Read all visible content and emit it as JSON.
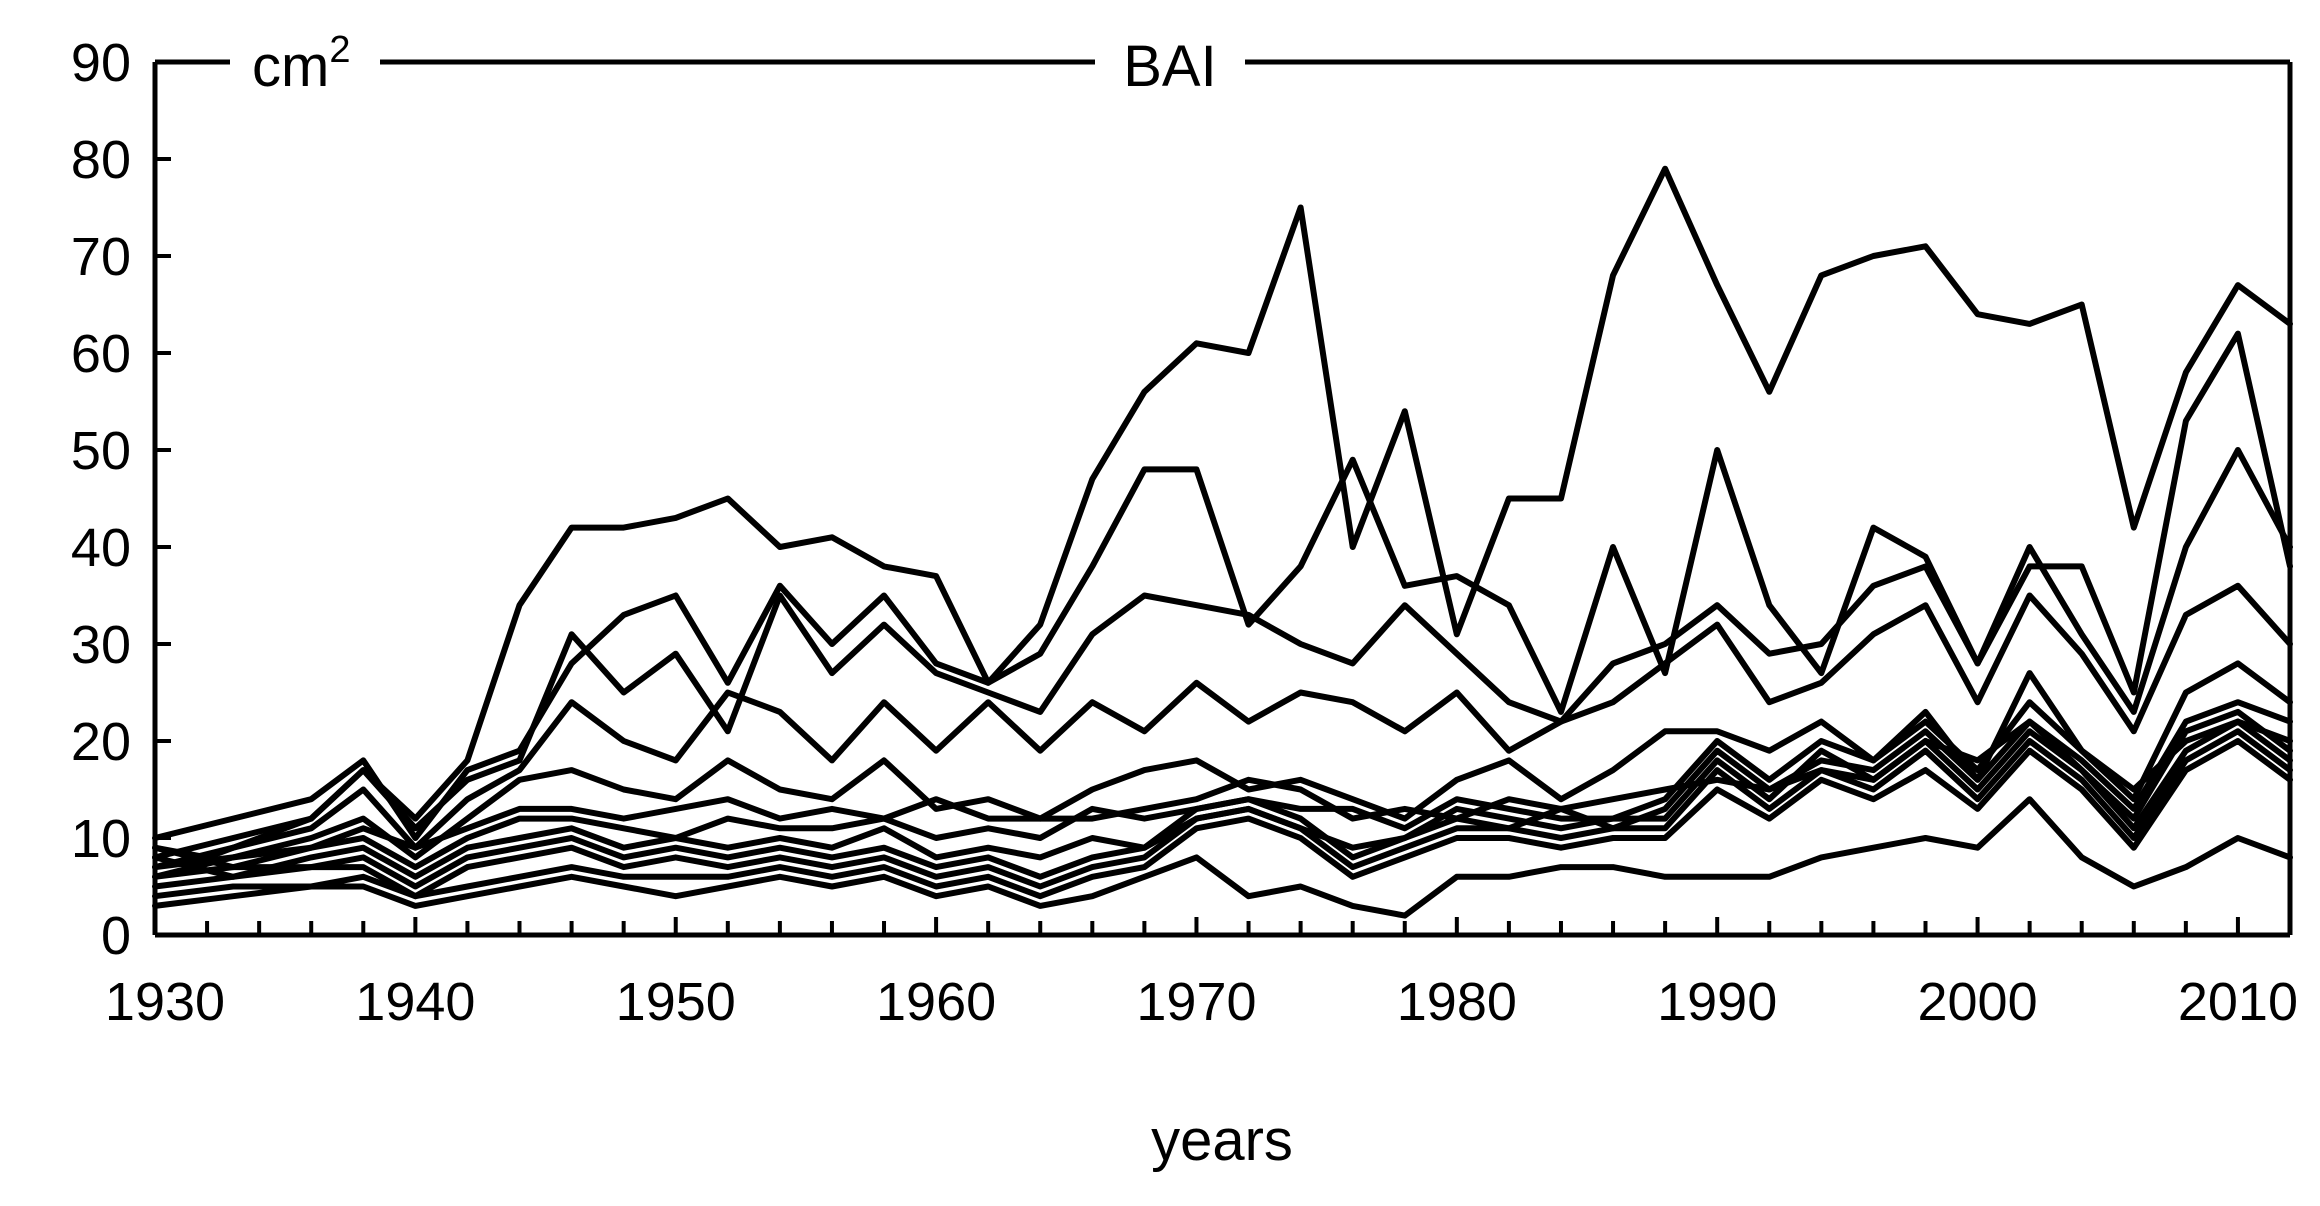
{
  "chart_data": {
    "type": "line",
    "title": "BAI",
    "unit_label": "cm",
    "unit_superscript": "2",
    "xlabel": "years",
    "ylabel": "",
    "xlim": [
      1930,
      2012
    ],
    "ylim": [
      0,
      90
    ],
    "x_ticks": [
      1930,
      1940,
      1950,
      1960,
      1970,
      1980,
      1990,
      2000,
      2010
    ],
    "y_ticks": [
      0,
      10,
      20,
      30,
      40,
      50,
      60,
      70,
      80,
      90
    ],
    "grid": false,
    "legend": "none",
    "line_color": "#000000",
    "series": [
      {
        "x": [
          1930,
          1932,
          1934,
          1936,
          1938,
          1940,
          1942,
          1944,
          1946,
          1948,
          1950,
          1952,
          1954,
          1956,
          1958,
          1960,
          1962,
          1964,
          1966,
          1968,
          1970,
          1972,
          1974,
          1976,
          1978,
          1980,
          1982,
          1984,
          1986,
          1988,
          1990,
          1992,
          1994,
          1996,
          1998,
          2000,
          2002,
          2004,
          2006,
          2008,
          2010,
          2012
        ],
        "values": [
          9,
          8,
          10,
          12,
          17,
          12,
          18,
          34,
          42,
          42,
          43,
          45,
          40,
          41,
          38,
          37,
          26,
          32,
          47,
          56,
          61,
          60,
          75,
          40,
          54,
          31,
          45,
          45,
          68,
          79,
          67,
          56,
          68,
          70,
          71,
          64,
          63,
          65,
          42,
          58,
          67,
          63
        ]
      },
      {
        "x": [
          1930,
          1933,
          1936,
          1938,
          1940,
          1942,
          1944,
          1946,
          1948,
          1950,
          1952,
          1954,
          1956,
          1958,
          1960,
          1962,
          1964,
          1966,
          1968,
          1970,
          1972,
          1974,
          1976,
          1978,
          1980,
          1982,
          1984,
          1986,
          1988,
          1990,
          1992,
          1994,
          1996,
          1998,
          2000,
          2002,
          2004,
          2006,
          2008,
          2010,
          2012
        ],
        "values": [
          10,
          12,
          14,
          18,
          10,
          17,
          19,
          28,
          33,
          35,
          26,
          36,
          30,
          35,
          28,
          26,
          29,
          38,
          48,
          48,
          32,
          38,
          49,
          36,
          37,
          34,
          23,
          40,
          27,
          50,
          34,
          27,
          42,
          39,
          28,
          38,
          38,
          25,
          53,
          62,
          38
        ]
      },
      {
        "x": [
          1930,
          1933,
          1936,
          1938,
          1940,
          1942,
          1944,
          1946,
          1948,
          1950,
          1952,
          1954,
          1956,
          1958,
          1960,
          1962,
          1964,
          1966,
          1968,
          1970,
          1972,
          1974,
          1976,
          1978,
          1980,
          1982,
          1984,
          1986,
          1988,
          1990,
          1992,
          1994,
          1996,
          1998,
          2000,
          2002,
          2004,
          2006,
          2008,
          2010,
          2012
        ],
        "values": [
          8,
          10,
          12,
          17,
          11,
          16,
          18,
          31,
          25,
          29,
          21,
          35,
          27,
          32,
          27,
          25,
          23,
          31,
          35,
          34,
          33,
          30,
          28,
          34,
          29,
          24,
          22,
          28,
          30,
          34,
          29,
          30,
          36,
          38,
          28,
          40,
          31,
          23,
          40,
          50,
          40
        ]
      },
      {
        "x": [
          1930,
          1933,
          1936,
          1938,
          1940,
          1942,
          1944,
          1946,
          1948,
          1950,
          1952,
          1954,
          1956,
          1958,
          1960,
          1962,
          1964,
          1966,
          1968,
          1970,
          1972,
          1974,
          1976,
          1978,
          1980,
          1982,
          1984,
          1986,
          1988,
          1990,
          1992,
          1994,
          1996,
          1998,
          2000,
          2002,
          2004,
          2006,
          2008,
          2010,
          2012
        ],
        "values": [
          7,
          9,
          11,
          15,
          9,
          14,
          17,
          24,
          20,
          18,
          25,
          23,
          18,
          24,
          19,
          24,
          19,
          24,
          21,
          26,
          22,
          25,
          24,
          21,
          25,
          19,
          22,
          24,
          28,
          32,
          24,
          26,
          31,
          34,
          24,
          35,
          29,
          21,
          33,
          36,
          30
        ]
      },
      {
        "x": [
          1930,
          1933,
          1936,
          1938,
          1940,
          1942,
          1944,
          1946,
          1948,
          1950,
          1952,
          1954,
          1956,
          1958,
          1960,
          1962,
          1964,
          1966,
          1968,
          1970,
          1972,
          1974,
          1976,
          1978,
          1980,
          1982,
          1984,
          1986,
          1988,
          1990,
          1992,
          1994,
          1996,
          1998,
          2000,
          2002,
          2004,
          2006,
          2008,
          2010,
          2012
        ],
        "values": [
          6,
          8,
          10,
          12,
          8,
          12,
          16,
          17,
          15,
          14,
          18,
          15,
          14,
          18,
          13,
          14,
          12,
          15,
          17,
          18,
          15,
          16,
          14,
          12,
          16,
          18,
          14,
          17,
          21,
          21,
          19,
          22,
          18,
          23,
          16,
          27,
          19,
          14,
          25,
          28,
          24
        ]
      },
      {
        "x": [
          1930,
          1933,
          1936,
          1938,
          1940,
          1942,
          1944,
          1946,
          1948,
          1950,
          1952,
          1954,
          1956,
          1958,
          1960,
          1962,
          1964,
          1966,
          1968,
          1970,
          1972,
          1974,
          1976,
          1978,
          1980,
          1982,
          1984,
          1986,
          1988,
          1990,
          1992,
          1994,
          1996,
          1998,
          2000,
          2002,
          2004,
          2006,
          2008,
          2010,
          2012
        ],
        "values": [
          9,
          7,
          9,
          11,
          9,
          11,
          13,
          13,
          12,
          13,
          14,
          12,
          13,
          12,
          14,
          12,
          12,
          12,
          13,
          14,
          16,
          15,
          12,
          13,
          12,
          14,
          13,
          14,
          15,
          16,
          15,
          17,
          16,
          20,
          18,
          22,
          18,
          13,
          22,
          24,
          22
        ]
      },
      {
        "x": [
          1930,
          1933,
          1936,
          1938,
          1940,
          1942,
          1944,
          1946,
          1948,
          1950,
          1952,
          1954,
          1956,
          1958,
          1960,
          1962,
          1964,
          1966,
          1968,
          1970,
          1972,
          1974,
          1976,
          1978,
          1980,
          1982,
          1984,
          1986,
          1988,
          1990,
          1992,
          1994,
          1996,
          1998,
          2000,
          2002,
          2004,
          2006,
          2008,
          2010,
          2012
        ],
        "values": [
          7,
          8,
          9,
          10,
          7,
          10,
          12,
          12,
          11,
          10,
          12,
          11,
          11,
          12,
          10,
          11,
          10,
          13,
          12,
          13,
          14,
          13,
          13,
          11,
          14,
          13,
          12,
          12,
          14,
          20,
          16,
          20,
          18,
          22,
          17,
          24,
          19,
          15,
          20,
          22,
          20
        ]
      },
      {
        "x": [
          1930,
          1933,
          1936,
          1938,
          1940,
          1942,
          1944,
          1946,
          1948,
          1950,
          1952,
          1954,
          1956,
          1958,
          1960,
          1962,
          1964,
          1966,
          1968,
          1970,
          1972,
          1974,
          1976,
          1978,
          1980,
          1982,
          1984,
          1986,
          1988,
          1990,
          1992,
          1994,
          1996,
          1998,
          2000,
          2002,
          2004,
          2006,
          2008,
          2010,
          2012
        ],
        "values": [
          8,
          6,
          8,
          9,
          6,
          9,
          10,
          11,
          9,
          10,
          9,
          10,
          9,
          11,
          8,
          9,
          8,
          10,
          9,
          12,
          13,
          11,
          9,
          10,
          12,
          11,
          13,
          11,
          13,
          19,
          15,
          18,
          17,
          21,
          16,
          22,
          17,
          12,
          21,
          23,
          19
        ]
      },
      {
        "x": [
          1930,
          1933,
          1936,
          1938,
          1940,
          1942,
          1944,
          1946,
          1948,
          1950,
          1952,
          1954,
          1956,
          1958,
          1960,
          1962,
          1964,
          1966,
          1968,
          1970,
          1972,
          1974,
          1976,
          1978,
          1980,
          1982,
          1984,
          1986,
          1988,
          1990,
          1992,
          1994,
          1996,
          1998,
          2000,
          2002,
          2004,
          2006,
          2008,
          2010,
          2012
        ],
        "values": [
          6,
          7,
          7,
          8,
          5,
          8,
          9,
          10,
          8,
          9,
          8,
          9,
          8,
          9,
          7,
          8,
          6,
          8,
          9,
          13,
          14,
          12,
          8,
          10,
          13,
          12,
          11,
          12,
          12,
          18,
          14,
          19,
          16,
          20,
          15,
          21,
          17,
          11,
          19,
          22,
          18
        ]
      },
      {
        "x": [
          1930,
          1933,
          1936,
          1938,
          1940,
          1942,
          1944,
          1946,
          1948,
          1950,
          1952,
          1954,
          1956,
          1958,
          1960,
          1962,
          1964,
          1966,
          1968,
          1970,
          1972,
          1974,
          1976,
          1978,
          1980,
          1982,
          1984,
          1986,
          1988,
          1990,
          1992,
          1994,
          1996,
          1998,
          2000,
          2002,
          2004,
          2006,
          2008,
          2010,
          2012
        ],
        "values": [
          5,
          6,
          7,
          7,
          4,
          7,
          8,
          9,
          7,
          8,
          7,
          8,
          7,
          8,
          6,
          7,
          5,
          7,
          8,
          12,
          13,
          11,
          7,
          9,
          11,
          11,
          10,
          11,
          11,
          17,
          13,
          17,
          15,
          19,
          14,
          20,
          16,
          10,
          18,
          21,
          17
        ]
      },
      {
        "x": [
          1930,
          1933,
          1936,
          1938,
          1940,
          1942,
          1944,
          1946,
          1948,
          1950,
          1952,
          1954,
          1956,
          1958,
          1960,
          1962,
          1964,
          1966,
          1968,
          1970,
          1972,
          1974,
          1976,
          1978,
          1980,
          1982,
          1984,
          1986,
          1988,
          1990,
          1992,
          1994,
          1996,
          1998,
          2000,
          2002,
          2004,
          2006,
          2008,
          2010,
          2012
        ],
        "values": [
          4,
          5,
          5,
          6,
          4,
          5,
          6,
          7,
          6,
          6,
          6,
          7,
          6,
          7,
          5,
          6,
          4,
          6,
          7,
          11,
          12,
          10,
          6,
          8,
          10,
          10,
          9,
          10,
          10,
          15,
          12,
          16,
          14,
          17,
          13,
          19,
          15,
          9,
          17,
          20,
          16
        ]
      },
      {
        "x": [
          1930,
          1933,
          1936,
          1938,
          1940,
          1942,
          1944,
          1946,
          1948,
          1950,
          1952,
          1954,
          1956,
          1958,
          1960,
          1962,
          1964,
          1966,
          1968,
          1970,
          1972,
          1974,
          1976,
          1978,
          1980,
          1982,
          1984,
          1986,
          1988,
          1990,
          1992,
          1994,
          1996,
          1998,
          2000,
          2002,
          2004,
          2006,
          2008,
          2010,
          2012
        ],
        "values": [
          3,
          4,
          5,
          5,
          3,
          4,
          5,
          6,
          5,
          4,
          5,
          6,
          5,
          6,
          4,
          5,
          3,
          4,
          6,
          8,
          4,
          5,
          3,
          2,
          6,
          6,
          7,
          7,
          6,
          6,
          6,
          8,
          9,
          10,
          9,
          14,
          8,
          5,
          7,
          10,
          8
        ]
      }
    ]
  }
}
